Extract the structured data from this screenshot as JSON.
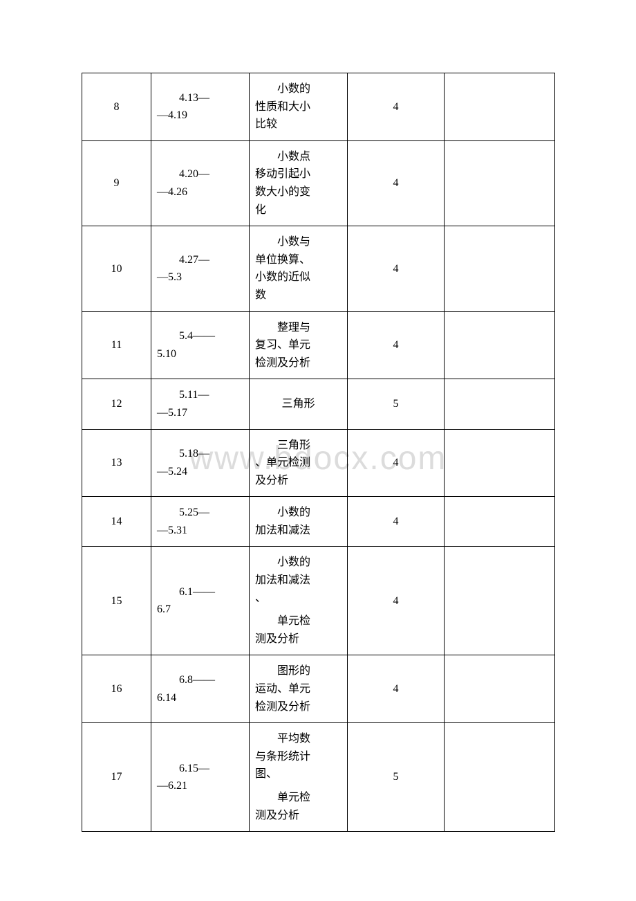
{
  "watermark": "www.bdocx.com",
  "table": {
    "columns": {
      "col1_width": 100,
      "col2_width": 142,
      "col3_width": 142,
      "col4_width": 140,
      "col5_width": 160
    },
    "rows": [
      {
        "num": "8",
        "date_indent": "4.13—",
        "date_cont": "—4.19",
        "content_indent": "小数的",
        "content_lines": [
          "性质和大小",
          "比较"
        ],
        "hours": "4",
        "note": ""
      },
      {
        "num": "9",
        "date_indent": "4.20—",
        "date_cont": "—4.26",
        "content_indent": "小数点",
        "content_lines": [
          "移动引起小",
          "数大小的变",
          "化"
        ],
        "hours": "4",
        "note": ""
      },
      {
        "num": "10",
        "date_indent": "4.27—",
        "date_cont": "—5.3",
        "content_indent": "小数与",
        "content_lines": [
          "单位换算、",
          "小数的近似",
          "数"
        ],
        "hours": "4",
        "note": ""
      },
      {
        "num": "11",
        "date_indent": "5.4——",
        "date_cont": "5.10",
        "content_indent": "整理与",
        "content_lines": [
          "复习、单元",
          "检测及分析"
        ],
        "hours": "4",
        "note": ""
      },
      {
        "num": "12",
        "date_indent": "5.11—",
        "date_cont": "—5.17",
        "content_indent": "",
        "content_lines": [
          "三角形"
        ],
        "hours": "5",
        "note": ""
      },
      {
        "num": "13",
        "date_indent": "5.18—",
        "date_cont": "—5.24",
        "content_indent": "三角形",
        "content_lines": [
          "、单元检测",
          "及分析"
        ],
        "hours": "4",
        "note": ""
      },
      {
        "num": "14",
        "date_indent": "5.25—",
        "date_cont": "—5.31",
        "content_indent": "小数的",
        "content_lines": [
          "加法和减法"
        ],
        "hours": "4",
        "note": ""
      },
      {
        "num": "15",
        "date_indent": "6.1——",
        "date_cont": "6.7",
        "content_blocks": [
          {
            "indent": "小数的",
            "lines": [
              "加法和减法",
              "、"
            ]
          },
          {
            "indent": "单元检",
            "lines": [
              "测及分析"
            ]
          }
        ],
        "hours": "4",
        "note": ""
      },
      {
        "num": "16",
        "date_indent": "6.8——",
        "date_cont": "6.14",
        "content_indent": "图形的",
        "content_lines": [
          "运动、单元",
          "检测及分析"
        ],
        "hours": "4",
        "note": ""
      },
      {
        "num": "17",
        "date_indent": "6.15—",
        "date_cont": "—6.21",
        "content_blocks": [
          {
            "indent": "平均数",
            "lines": [
              "与条形统计",
              "图、"
            ]
          },
          {
            "indent": "单元检",
            "lines": [
              "测及分析"
            ]
          }
        ],
        "hours": "5",
        "note": ""
      }
    ]
  }
}
